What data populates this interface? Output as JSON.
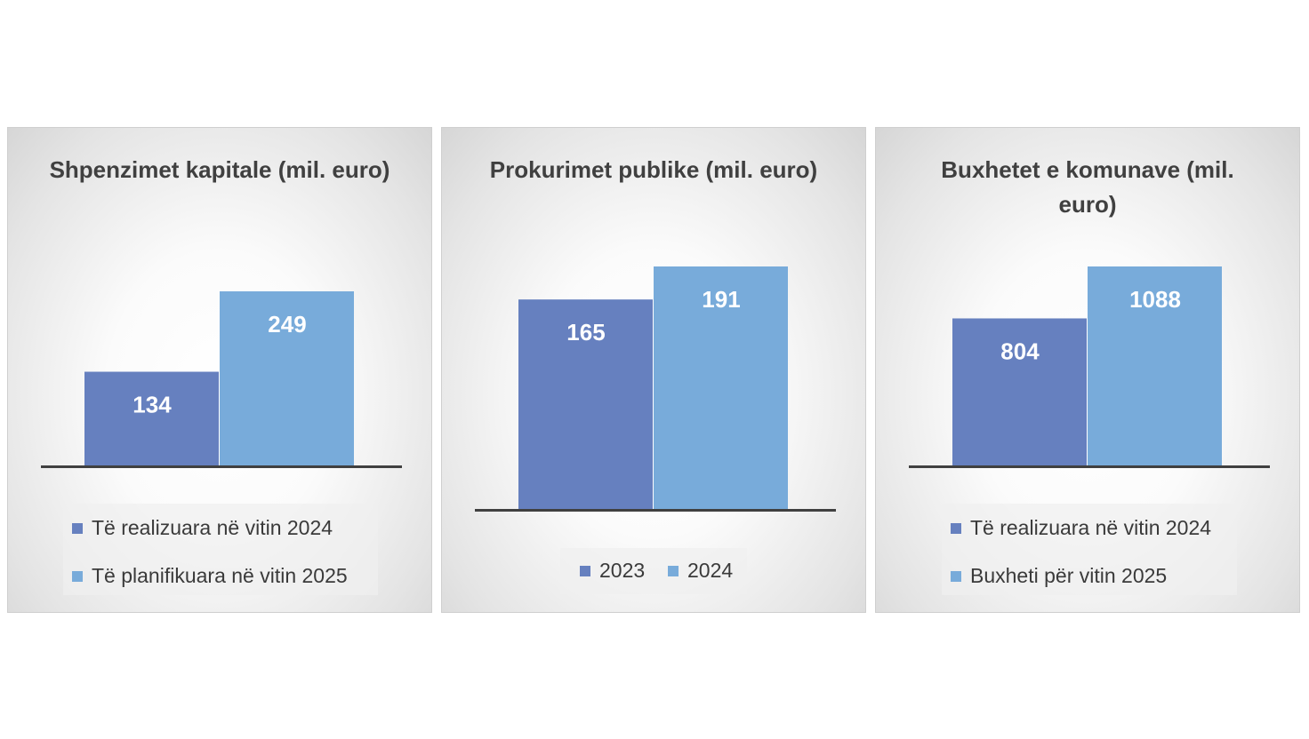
{
  "colors": {
    "series_dark": "#6680bf",
    "series_light": "#78abda",
    "axis": "#404040",
    "label": "#ffffff"
  },
  "chart_data": [
    {
      "type": "bar",
      "title": "Shpenzimet kapitale (mil. euro)",
      "categories": [
        ""
      ],
      "series": [
        {
          "name": "Të realizuara në vitin 2024",
          "values": [
            134
          ]
        },
        {
          "name": "Të planifikuara në vitin 2025",
          "values": [
            249
          ]
        }
      ],
      "data_labels": [
        "134",
        "249"
      ],
      "legend_position": "bottom",
      "grid": false
    },
    {
      "type": "bar",
      "title": "Prokurimet publike (mil. euro)",
      "categories": [
        ""
      ],
      "series": [
        {
          "name": "2023",
          "values": [
            165
          ]
        },
        {
          "name": "2024",
          "values": [
            191
          ]
        }
      ],
      "data_labels": [
        "165",
        "191"
      ],
      "legend_position": "bottom",
      "grid": false
    },
    {
      "type": "bar",
      "title": "Buxhetet e komunave (mil. euro)",
      "categories": [
        ""
      ],
      "series": [
        {
          "name": "Të realizuara në vitin 2024",
          "values": [
            804
          ]
        },
        {
          "name": "Buxheti për vitin 2025",
          "values": [
            1088
          ]
        }
      ],
      "data_labels": [
        "804",
        "1088"
      ],
      "legend_position": "bottom",
      "grid": false
    }
  ]
}
